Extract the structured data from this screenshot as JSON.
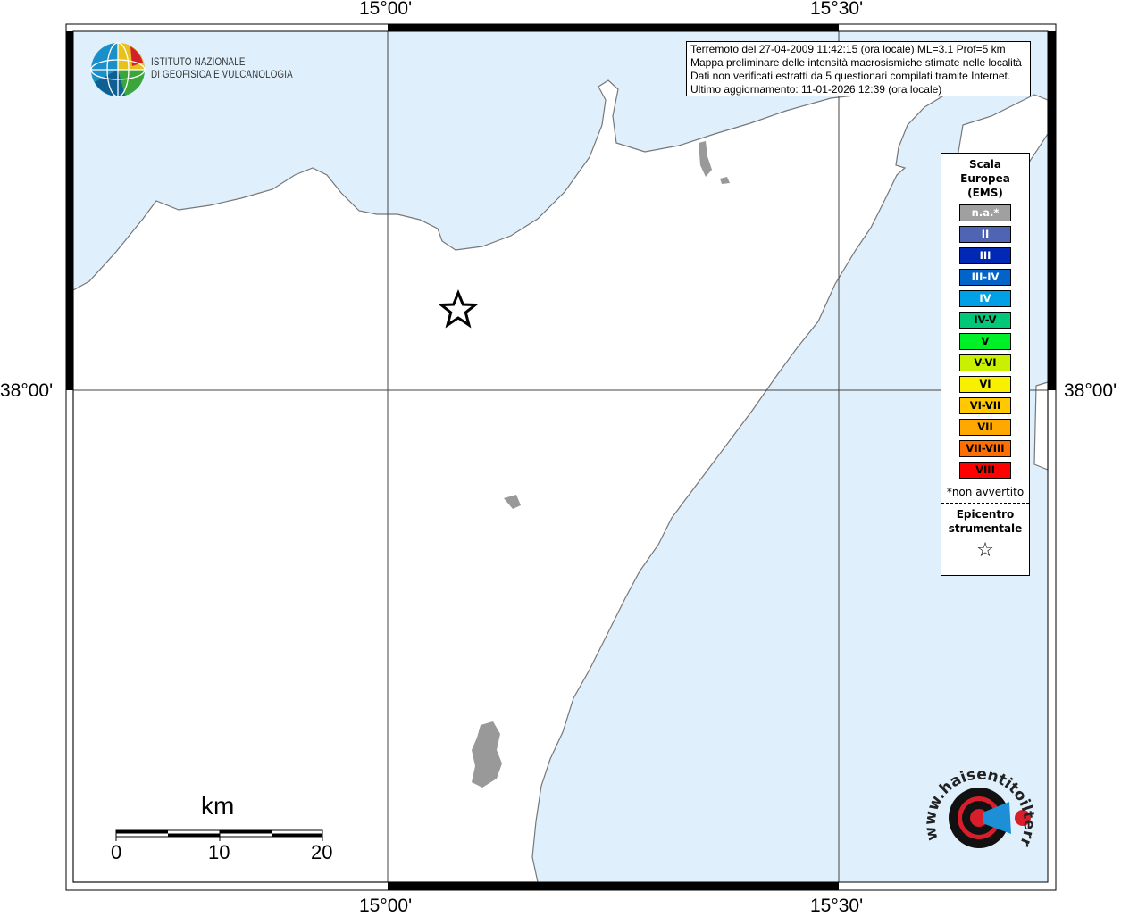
{
  "map": {
    "colors": {
      "sea": "#dff0fc",
      "land": "#ffffff",
      "coast": "#777777",
      "lakes": "#999999"
    },
    "coordinates": {
      "top": [
        "15°00'",
        "15°30'"
      ],
      "bottom": [
        "15°00'",
        "15°30'"
      ],
      "left": "38°00'",
      "right": "38°00'"
    },
    "epicenter_marker": "star-icon"
  },
  "info": {
    "line1": "Terremoto del 27-04-2009 11:42:15 (ora locale) ML=3.1 Prof=5 km",
    "line2": "Mappa preliminare delle intensità macrosismiche stimate nelle località",
    "line3": "Dati non verificati estratti da 5 questionari compilati tramite Internet.",
    "line4": "Ultimo aggiornamento: 11-01-2026 12:39 (ora locale)"
  },
  "legend": {
    "title": [
      "Scala",
      "Europea",
      "(EMS)"
    ],
    "items": [
      {
        "label": "n.a.*",
        "color": "#a0a0a0",
        "text": "#ffffff"
      },
      {
        "label": "II",
        "color": "#5064b4",
        "text": "#ffffff"
      },
      {
        "label": "III",
        "color": "#0028b4",
        "text": "#ffffff"
      },
      {
        "label": "III-IV",
        "color": "#0064c8",
        "text": "#ffffff"
      },
      {
        "label": "IV",
        "color": "#00a0e6",
        "text": "#ffffff"
      },
      {
        "label": "IV-V",
        "color": "#00c878",
        "text": "#000000"
      },
      {
        "label": "V",
        "color": "#00f028",
        "text": "#000000"
      },
      {
        "label": "V-VI",
        "color": "#c8f000",
        "text": "#000000"
      },
      {
        "label": "VI",
        "color": "#f8f000",
        "text": "#000000"
      },
      {
        "label": "VI-VII",
        "color": "#ffc800",
        "text": "#000000"
      },
      {
        "label": "VII",
        "color": "#ffa800",
        "text": "#000000"
      },
      {
        "label": "VII-VIII",
        "color": "#ff6e00",
        "text": "#000000"
      },
      {
        "label": "VIII",
        "color": "#ff0000",
        "text": "#000000"
      }
    ],
    "note": "*non avvertito",
    "epicenter": [
      "Epicentro",
      "strumentale"
    ],
    "epicenter_symbol": "☆"
  },
  "scale": {
    "unit": "km",
    "ticks": [
      "0",
      "10",
      "20"
    ]
  },
  "logos": {
    "ingv": [
      "ISTITUTO NAZIONALE",
      "DI GEOFISICA E VULCANOLOGIA"
    ],
    "haisentito": "www.haisentitoilterremoto.it"
  }
}
